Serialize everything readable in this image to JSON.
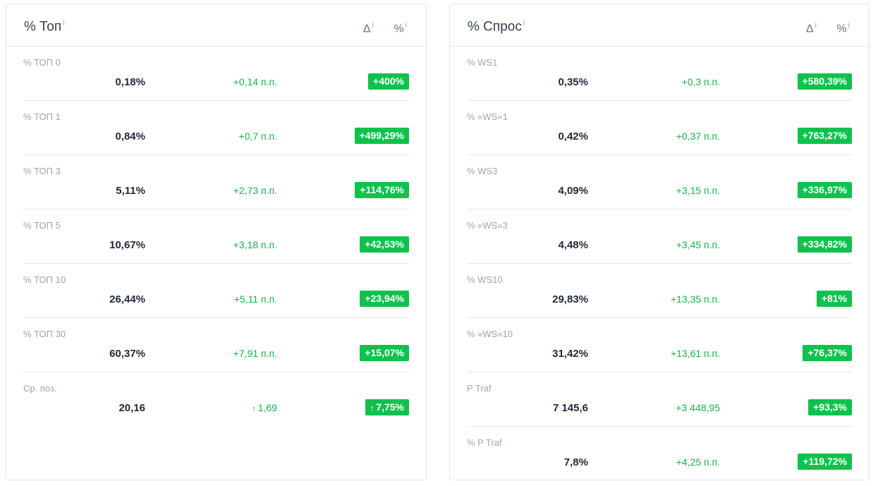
{
  "left": {
    "title": "% Топ",
    "title_info": "i",
    "col_delta": "Δ",
    "col_delta_info": "i",
    "col_pct": "%",
    "col_pct_info": "i",
    "rows": [
      {
        "label": "% ТОП 0",
        "value": "0,18%",
        "delta": "+0,14 п.п.",
        "badge": "+400%"
      },
      {
        "label": "% ТОП 1",
        "value": "0,84%",
        "delta": "+0,7 п.п.",
        "badge": "+499,29%"
      },
      {
        "label": "% ТОП 3",
        "value": "5,11%",
        "delta": "+2,73 п.п.",
        "badge": "+114,76%"
      },
      {
        "label": "% ТОП 5",
        "value": "10,67%",
        "delta": "+3,18 п.п.",
        "badge": "+42,53%"
      },
      {
        "label": "% ТОП 10",
        "value": "26,44%",
        "delta": "+5,11 п.п.",
        "badge": "+23,94%"
      },
      {
        "label": "% ТОП 30",
        "value": "60,37%",
        "delta": "+7,91 п.п.",
        "badge": "+15,07%"
      },
      {
        "label": "Ср. поз.",
        "value": "20,16",
        "delta": "1,69",
        "badge": "7,75%",
        "arrow": "↑"
      }
    ]
  },
  "right": {
    "title": "% Спрос",
    "title_info": "i",
    "col_delta": "Δ",
    "col_delta_info": "i",
    "col_pct": "%",
    "col_pct_info": "i",
    "rows": [
      {
        "label": "% WS1",
        "value": "0,35%",
        "delta": "+0,3 п.п.",
        "badge": "+580,39%"
      },
      {
        "label": "% «WS»1",
        "value": "0,42%",
        "delta": "+0,37 п.п.",
        "badge": "+763,27%"
      },
      {
        "label": "% WS3",
        "value": "4,09%",
        "delta": "+3,15 п.п.",
        "badge": "+336,97%"
      },
      {
        "label": "% «WS»3",
        "value": "4,48%",
        "delta": "+3,45 п.п.",
        "badge": "+334,82%"
      },
      {
        "label": "% WS10",
        "value": "29,83%",
        "delta": "+13,35 п.п.",
        "badge": "+81%"
      },
      {
        "label": "% «WS»10",
        "value": "31,42%",
        "delta": "+13,61 п.п.",
        "badge": "+76,37%"
      },
      {
        "label": "P Traf",
        "value": "7 145,6",
        "delta": "+3 448,95",
        "badge": "+93,3%"
      },
      {
        "label": "% P Traf",
        "value": "7,8%",
        "delta": "+4,25 п.п.",
        "badge": "+119,72%"
      }
    ]
  },
  "colors": {
    "badge_bg": "#0ec24d",
    "delta_text": "#16b34a"
  }
}
